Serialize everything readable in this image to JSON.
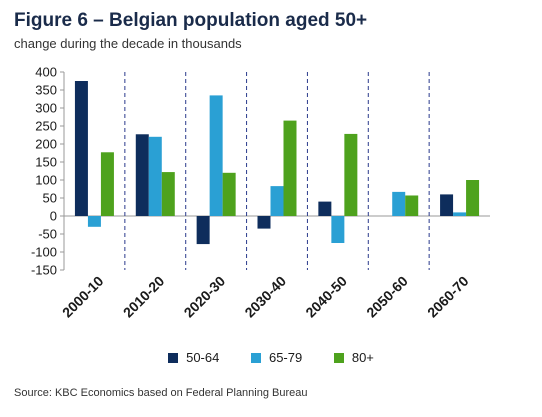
{
  "title": "Figure 6 – Belgian population aged 50+",
  "subtitle": "change during the decade in thousands",
  "source": "Source: KBC Economics based on Federal Planning Bureau",
  "colors": {
    "s1": "#0e2d5c",
    "s2": "#2aa0d4",
    "s3": "#4ea21d",
    "divider": "#2a3a8c",
    "axis": "#999999"
  },
  "chart_data": {
    "type": "bar",
    "categories": [
      "2000-10",
      "2010-20",
      "2020-30",
      "2030-40",
      "2040-50",
      "2050-60",
      "2060-70"
    ],
    "series": [
      {
        "name": "50-64",
        "values": [
          375,
          227,
          -78,
          -35,
          40,
          0,
          60
        ]
      },
      {
        "name": "65-79",
        "values": [
          -30,
          220,
          335,
          83,
          -75,
          67,
          10
        ]
      },
      {
        "name": "80+",
        "values": [
          177,
          122,
          120,
          265,
          228,
          57,
          100
        ]
      }
    ],
    "yticks": [
      "400",
      "350",
      "300",
      "250",
      "200",
      "150",
      "100",
      "50",
      "0",
      "-50",
      "-100",
      "-150"
    ],
    "ylim": [
      -150,
      400
    ],
    "grid": false,
    "legend_position": "bottom"
  }
}
